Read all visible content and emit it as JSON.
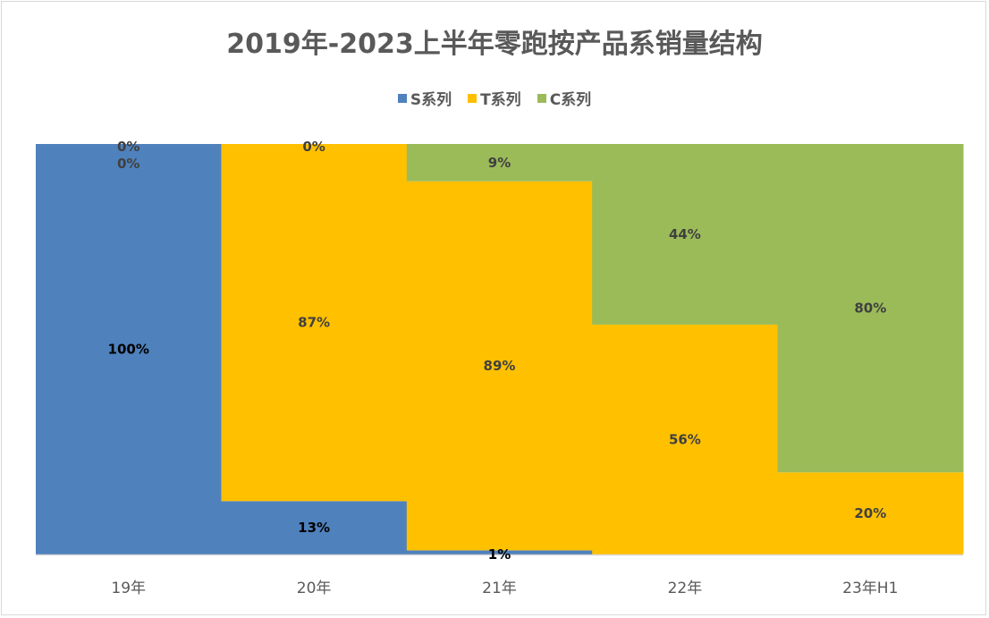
{
  "chart_data": {
    "type": "bar",
    "stacked": "percent",
    "title": "2019年-2023上半年零跑按产品系销量结构",
    "categories": [
      "19年",
      "20年",
      "21年",
      "22年",
      "23年H1"
    ],
    "series": [
      {
        "name": "S系列",
        "color": "#4f81bd",
        "values": [
          100,
          13,
          1,
          0,
          0
        ],
        "labels": [
          "100%",
          "13%",
          "1%",
          null,
          null
        ],
        "label_color": "#000000"
      },
      {
        "name": "T系列",
        "color": "#ffc000",
        "values": [
          0,
          87,
          89,
          56,
          20
        ],
        "labels": [
          "0%",
          "87%",
          "89%",
          "56%",
          "20%"
        ],
        "label_color": "#404040"
      },
      {
        "name": "C系列",
        "color": "#9bbb59",
        "values": [
          0,
          0,
          9,
          44,
          80
        ],
        "labels": [
          "0%",
          "0%",
          "9%",
          "44%",
          "80%"
        ],
        "label_color": "#404040"
      }
    ],
    "ylim": [
      0,
      100
    ],
    "legend": "top",
    "grid": false,
    "gap_width": 0
  }
}
